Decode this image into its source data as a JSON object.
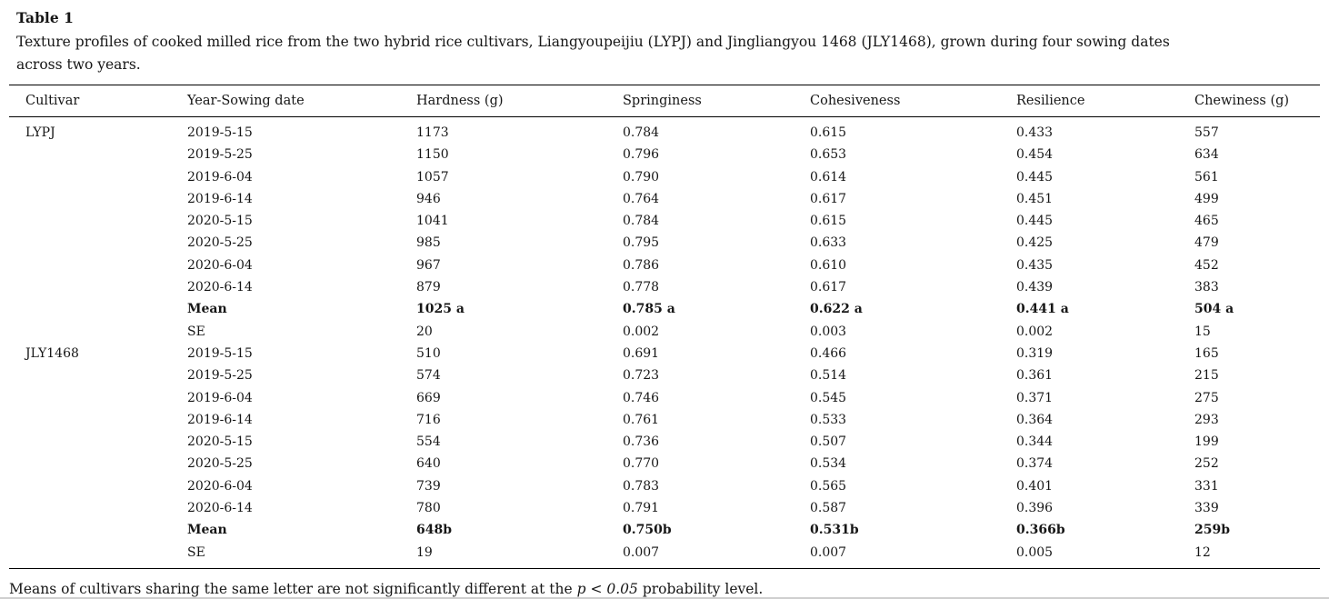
{
  "page": {
    "title": "Table 1",
    "caption_line1": "Texture profiles of cooked milled rice from the two hybrid rice cultivars, Liangyoupeijiu (LYPJ) and Jingliangyou 1468 (JLY1468), grown during four sowing dates",
    "caption_line2": "across two years.",
    "columns": [
      "Cultivar",
      "Year-Sowing date",
      "Hardness (g)",
      "Springiness",
      "Cohesiveness",
      "Resilience",
      "Chewiness (g)"
    ],
    "rows": [
      {
        "cultivar": "LYPJ",
        "date": "2019-5-15",
        "hardness": "1173",
        "springiness": "0.784",
        "cohesiveness": "0.615",
        "resilience": "0.433",
        "chewiness": "557",
        "bold": false
      },
      {
        "cultivar": "",
        "date": "2019-5-25",
        "hardness": "1150",
        "springiness": "0.796",
        "cohesiveness": "0.653",
        "resilience": "0.454",
        "chewiness": "634",
        "bold": false
      },
      {
        "cultivar": "",
        "date": "2019-6-04",
        "hardness": "1057",
        "springiness": "0.790",
        "cohesiveness": "0.614",
        "resilience": "0.445",
        "chewiness": "561",
        "bold": false
      },
      {
        "cultivar": "",
        "date": "2019-6-14",
        "hardness": "946",
        "springiness": "0.764",
        "cohesiveness": "0.617",
        "resilience": "0.451",
        "chewiness": "499",
        "bold": false
      },
      {
        "cultivar": "",
        "date": "2020-5-15",
        "hardness": "1041",
        "springiness": "0.784",
        "cohesiveness": "0.615",
        "resilience": "0.445",
        "chewiness": "465",
        "bold": false
      },
      {
        "cultivar": "",
        "date": "2020-5-25",
        "hardness": "985",
        "springiness": "0.795",
        "cohesiveness": "0.633",
        "resilience": "0.425",
        "chewiness": "479",
        "bold": false
      },
      {
        "cultivar": "",
        "date": "2020-6-04",
        "hardness": "967",
        "springiness": "0.786",
        "cohesiveness": "0.610",
        "resilience": "0.435",
        "chewiness": "452",
        "bold": false
      },
      {
        "cultivar": "",
        "date": "2020-6-14",
        "hardness": "879",
        "springiness": "0.778",
        "cohesiveness": "0.617",
        "resilience": "0.439",
        "chewiness": "383",
        "bold": false
      },
      {
        "cultivar": "",
        "date": "Mean",
        "hardness": "1025 a",
        "springiness": "0.785 a",
        "cohesiveness": "0.622 a",
        "resilience": "0.441 a",
        "chewiness": "504 a",
        "bold": true
      },
      {
        "cultivar": "",
        "date": "SE",
        "hardness": "20",
        "springiness": "0.002",
        "cohesiveness": "0.003",
        "resilience": "0.002",
        "chewiness": "15",
        "bold": false
      },
      {
        "cultivar": "JLY1468",
        "date": "2019-5-15",
        "hardness": "510",
        "springiness": "0.691",
        "cohesiveness": "0.466",
        "resilience": "0.319",
        "chewiness": "165",
        "bold": false
      },
      {
        "cultivar": "",
        "date": "2019-5-25",
        "hardness": "574",
        "springiness": "0.723",
        "cohesiveness": "0.514",
        "resilience": "0.361",
        "chewiness": "215",
        "bold": false
      },
      {
        "cultivar": "",
        "date": "2019-6-04",
        "hardness": "669",
        "springiness": "0.746",
        "cohesiveness": "0.545",
        "resilience": "0.371",
        "chewiness": "275",
        "bold": false
      },
      {
        "cultivar": "",
        "date": "2019-6-14",
        "hardness": "716",
        "springiness": "0.761",
        "cohesiveness": "0.533",
        "resilience": "0.364",
        "chewiness": "293",
        "bold": false
      },
      {
        "cultivar": "",
        "date": "2020-5-15",
        "hardness": "554",
        "springiness": "0.736",
        "cohesiveness": "0.507",
        "resilience": "0.344",
        "chewiness": "199",
        "bold": false
      },
      {
        "cultivar": "",
        "date": "2020-5-25",
        "hardness": "640",
        "springiness": "0.770",
        "cohesiveness": "0.534",
        "resilience": "0.374",
        "chewiness": "252",
        "bold": false
      },
      {
        "cultivar": "",
        "date": "2020-6-04",
        "hardness": "739",
        "springiness": "0.783",
        "cohesiveness": "0.565",
        "resilience": "0.401",
        "chewiness": "331",
        "bold": false
      },
      {
        "cultivar": "",
        "date": "2020-6-14",
        "hardness": "780",
        "springiness": "0.791",
        "cohesiveness": "0.587",
        "resilience": "0.396",
        "chewiness": "339",
        "bold": false
      },
      {
        "cultivar": "",
        "date": "Mean",
        "hardness": "648b",
        "springiness": "0.750b",
        "cohesiveness": "0.531b",
        "resilience": "0.366b",
        "chewiness": "259b",
        "bold": true
      },
      {
        "cultivar": "",
        "date": "SE",
        "hardness": "19",
        "springiness": "0.007",
        "cohesiveness": "0.007",
        "resilience": "0.005",
        "chewiness": "12",
        "bold": false
      }
    ],
    "footnote": {
      "before": "Means of cultivars sharing the same letter are not significantly different at the ",
      "italic": "p < 0.05",
      "after": " probability level."
    }
  }
}
